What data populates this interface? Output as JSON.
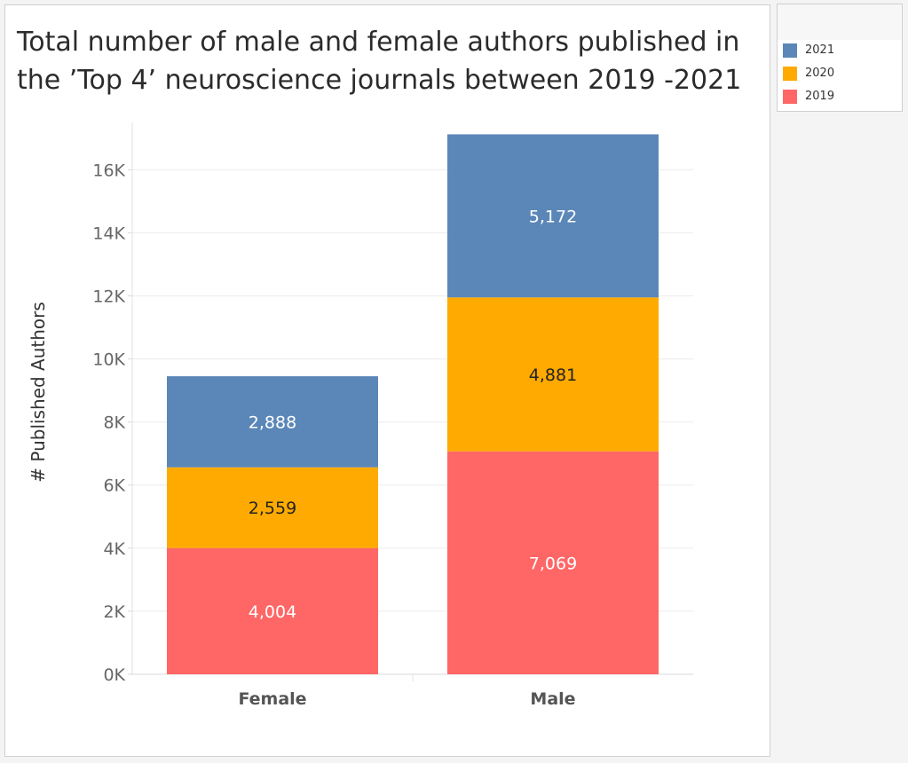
{
  "chart_data": {
    "type": "bar",
    "stacked": true,
    "title": "Total number of male and female authors published in the ’Top 4’ neuroscience journals between 2019 -2021",
    "ylabel": "# Published Authors",
    "xlabel": "",
    "categories": [
      "Female",
      "Male"
    ],
    "ylim": [
      0,
      17500
    ],
    "yticks": [
      0,
      2000,
      4000,
      6000,
      8000,
      10000,
      12000,
      14000,
      16000
    ],
    "ytick_labels": [
      "0K",
      "2K",
      "4K",
      "6K",
      "8K",
      "10K",
      "12K",
      "14K",
      "16K"
    ],
    "series": [
      {
        "name": "2019",
        "values": [
          4004,
          7069
        ],
        "labels": [
          "4,004",
          "7,069"
        ],
        "color": "#ff6666",
        "label_color": "#ffffff"
      },
      {
        "name": "2020",
        "values": [
          2559,
          4881
        ],
        "labels": [
          "2,559",
          "4,881"
        ],
        "color": "#ffaa00",
        "label_color": "#222222"
      },
      {
        "name": "2021",
        "values": [
          2888,
          5172
        ],
        "labels": [
          "2,888",
          "5,172"
        ],
        "color": "#5b87b8",
        "label_color": "#ffffff"
      }
    ],
    "grid": true,
    "legend_position": "top-right",
    "legend_order": [
      "2021",
      "2020",
      "2019"
    ]
  }
}
